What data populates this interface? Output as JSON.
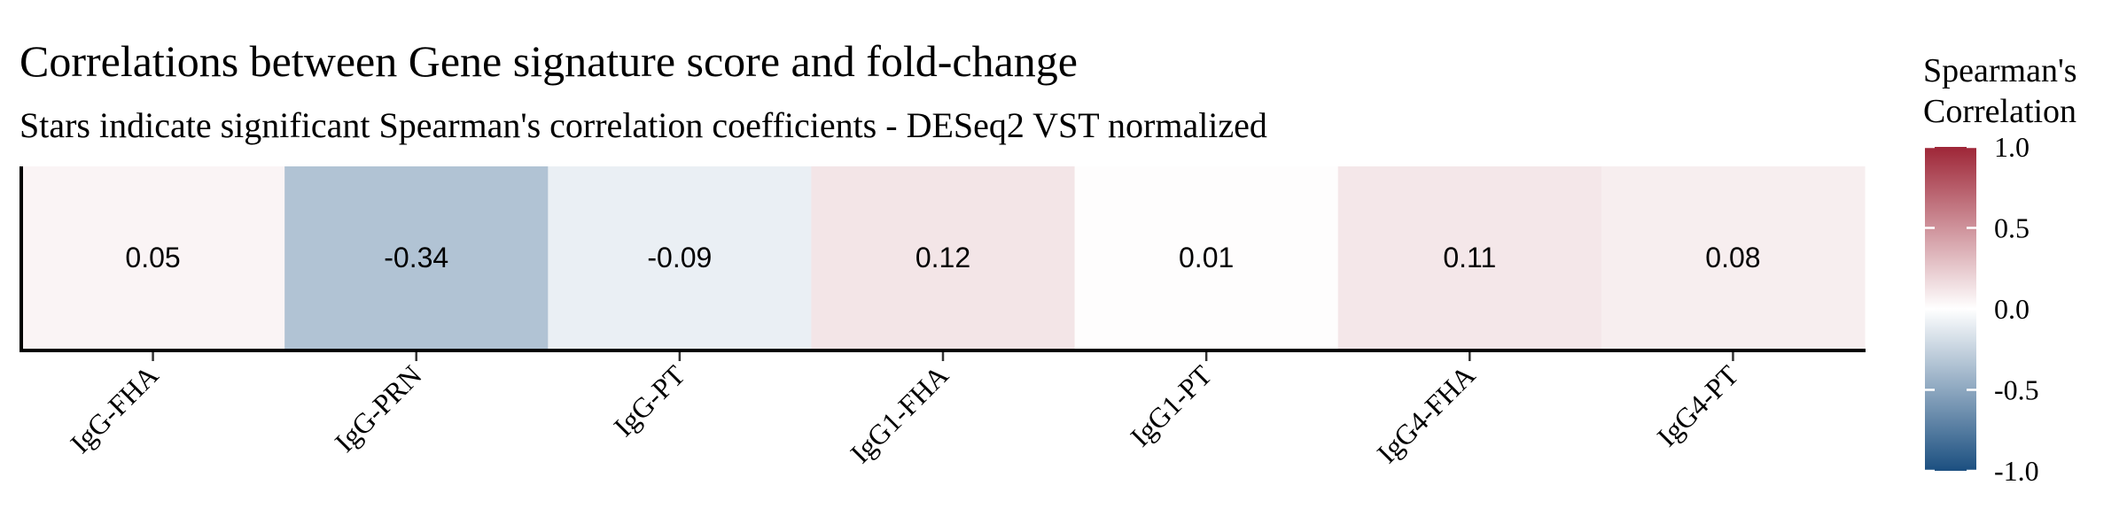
{
  "chart_data": {
    "type": "heatmap",
    "title": "Correlations between Gene signature score and fold-change",
    "subtitle": "Stars indicate significant Spearman's correlation coefficients - DESeq2 VST normalized",
    "categories": [
      "IgG-FHA",
      "IgG-PRN",
      "IgG-PT",
      "IgG1-FHA",
      "IgG1-PT",
      "IgG4-FHA",
      "IgG4-PT"
    ],
    "values": [
      0.05,
      -0.34,
      -0.09,
      0.12,
      0.01,
      0.11,
      0.08
    ],
    "value_labels": [
      "0.05",
      "-0.34",
      "-0.09",
      "0.12",
      "0.01",
      "0.11",
      "0.08"
    ],
    "legend": {
      "title_lines": [
        "Spearman's",
        "Correlation"
      ],
      "ticks": [
        1.0,
        0.5,
        0.0,
        -0.5,
        -1.0
      ],
      "tick_labels": [
        "1.0",
        "0.5",
        "0.0",
        "-0.5",
        "-1.0"
      ],
      "range": [
        -1.0,
        1.0
      ],
      "placement": "right"
    },
    "color_scale": {
      "low": "#1b4f80",
      "mid": "#ffffff",
      "high": "#9e2637"
    },
    "grid": false
  }
}
